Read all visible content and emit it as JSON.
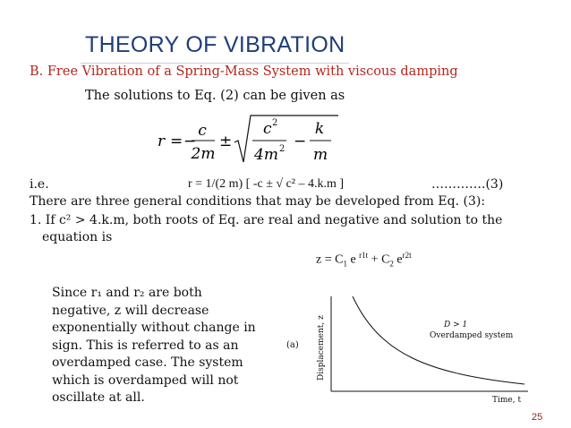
{
  "title": "THEORY OF VIBRATION",
  "subtitle": "B. Free Vibration of a Spring-Mass System with viscous damping",
  "intro": "The solutions to Eq. (2) can be given as",
  "equation_image": {
    "r": "r",
    "eq": "=",
    "minus": "−",
    "c": "c",
    "two_m": "2m",
    "pm": "±",
    "c2": "c",
    "c2_exp": "2",
    "four_m2": "4m",
    "four_m2_exp": "2",
    "minus2": "−",
    "k": "k",
    "m": "m"
  },
  "ie_label": "i.e.",
  "formula_text": "r = 1/(2 m) [ -c ± √ c² – 4.k.m  ]",
  "equation_number": "………….(3)",
  "line1": "There are three general conditions that may be developed from Eq. (3):",
  "line2": "1. If c² > 4.k.m, both roots of Eq. are real and negative and solution to the",
  "line3": "equation is",
  "z_solution": {
    "lhs": "z = C",
    "sub1": "1",
    "e1": " e ",
    "sup1": "r1t",
    "plus": " + C",
    "sub2": "2",
    "e2": " e",
    "sup2": "r2t"
  },
  "note": "Since r₁ and r₂ are both negative, z will decrease exponentially without change in sign. This is referred to as an overdamped case. The system which is overdamped will not oscillate at all.",
  "figure": {
    "panel_label": "(a)",
    "ylabel": "Displacement, z",
    "xlabel": "Time, t",
    "annotation_line1": "D > 1",
    "annotation_line2": "Overdamped system"
  },
  "page_number": "25",
  "colors": {
    "title": "#1f3e7a",
    "subtitle": "#b3261e",
    "page_number": "#8a2b1e"
  }
}
